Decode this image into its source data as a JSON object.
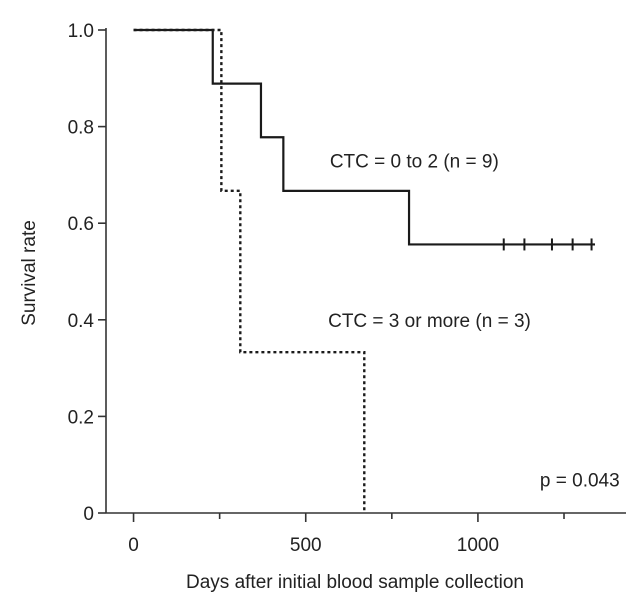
{
  "chart_data": {
    "type": "line",
    "title": "",
    "xlabel": "Days after initial blood sample collection",
    "ylabel": "Survival rate",
    "xlim": [
      -80,
      1430
    ],
    "ylim": [
      0,
      1.0
    ],
    "x_ticks": [
      0,
      500,
      1000
    ],
    "x_minor_ticks": [
      250,
      750,
      1250
    ],
    "x_tick_labels": [
      "0",
      "500",
      "1000"
    ],
    "y_ticks": [
      0,
      0.2,
      0.4,
      0.6,
      0.8,
      1.0
    ],
    "y_tick_labels": [
      "0",
      "0.2",
      "0.4",
      "0.6",
      "0.8",
      "1.0"
    ],
    "grid": false,
    "series": [
      {
        "name": "CTC = 0 to 2 (n = 9)",
        "style": "solid",
        "color": "#1a1a1a",
        "steps": [
          [
            0,
            1.0
          ],
          [
            230,
            0.889
          ],
          [
            370,
            0.778
          ],
          [
            435,
            0.667
          ],
          [
            800,
            0.556
          ],
          [
            1340,
            0.556
          ]
        ],
        "censored": [
          [
            1075,
            0.556
          ],
          [
            1135,
            0.556
          ],
          [
            1215,
            0.556
          ],
          [
            1275,
            0.556
          ],
          [
            1330,
            0.556
          ]
        ]
      },
      {
        "name": "CTC = 3 or more (n = 3)",
        "style": "dotted",
        "color": "#1a1a1a",
        "steps": [
          [
            0,
            1.0
          ],
          [
            255,
            0.667
          ],
          [
            310,
            0.333
          ],
          [
            670,
            0.0
          ]
        ],
        "censored": []
      }
    ],
    "annotations": [
      {
        "text": "CTC = 0 to 2 (n = 9)",
        "x": 570,
        "y": 0.715
      },
      {
        "text": "CTC = 3 or more (n = 3)",
        "x": 565,
        "y": 0.385
      },
      {
        "text": "p = 0.043",
        "x": 1180,
        "y": 0.055
      }
    ]
  }
}
